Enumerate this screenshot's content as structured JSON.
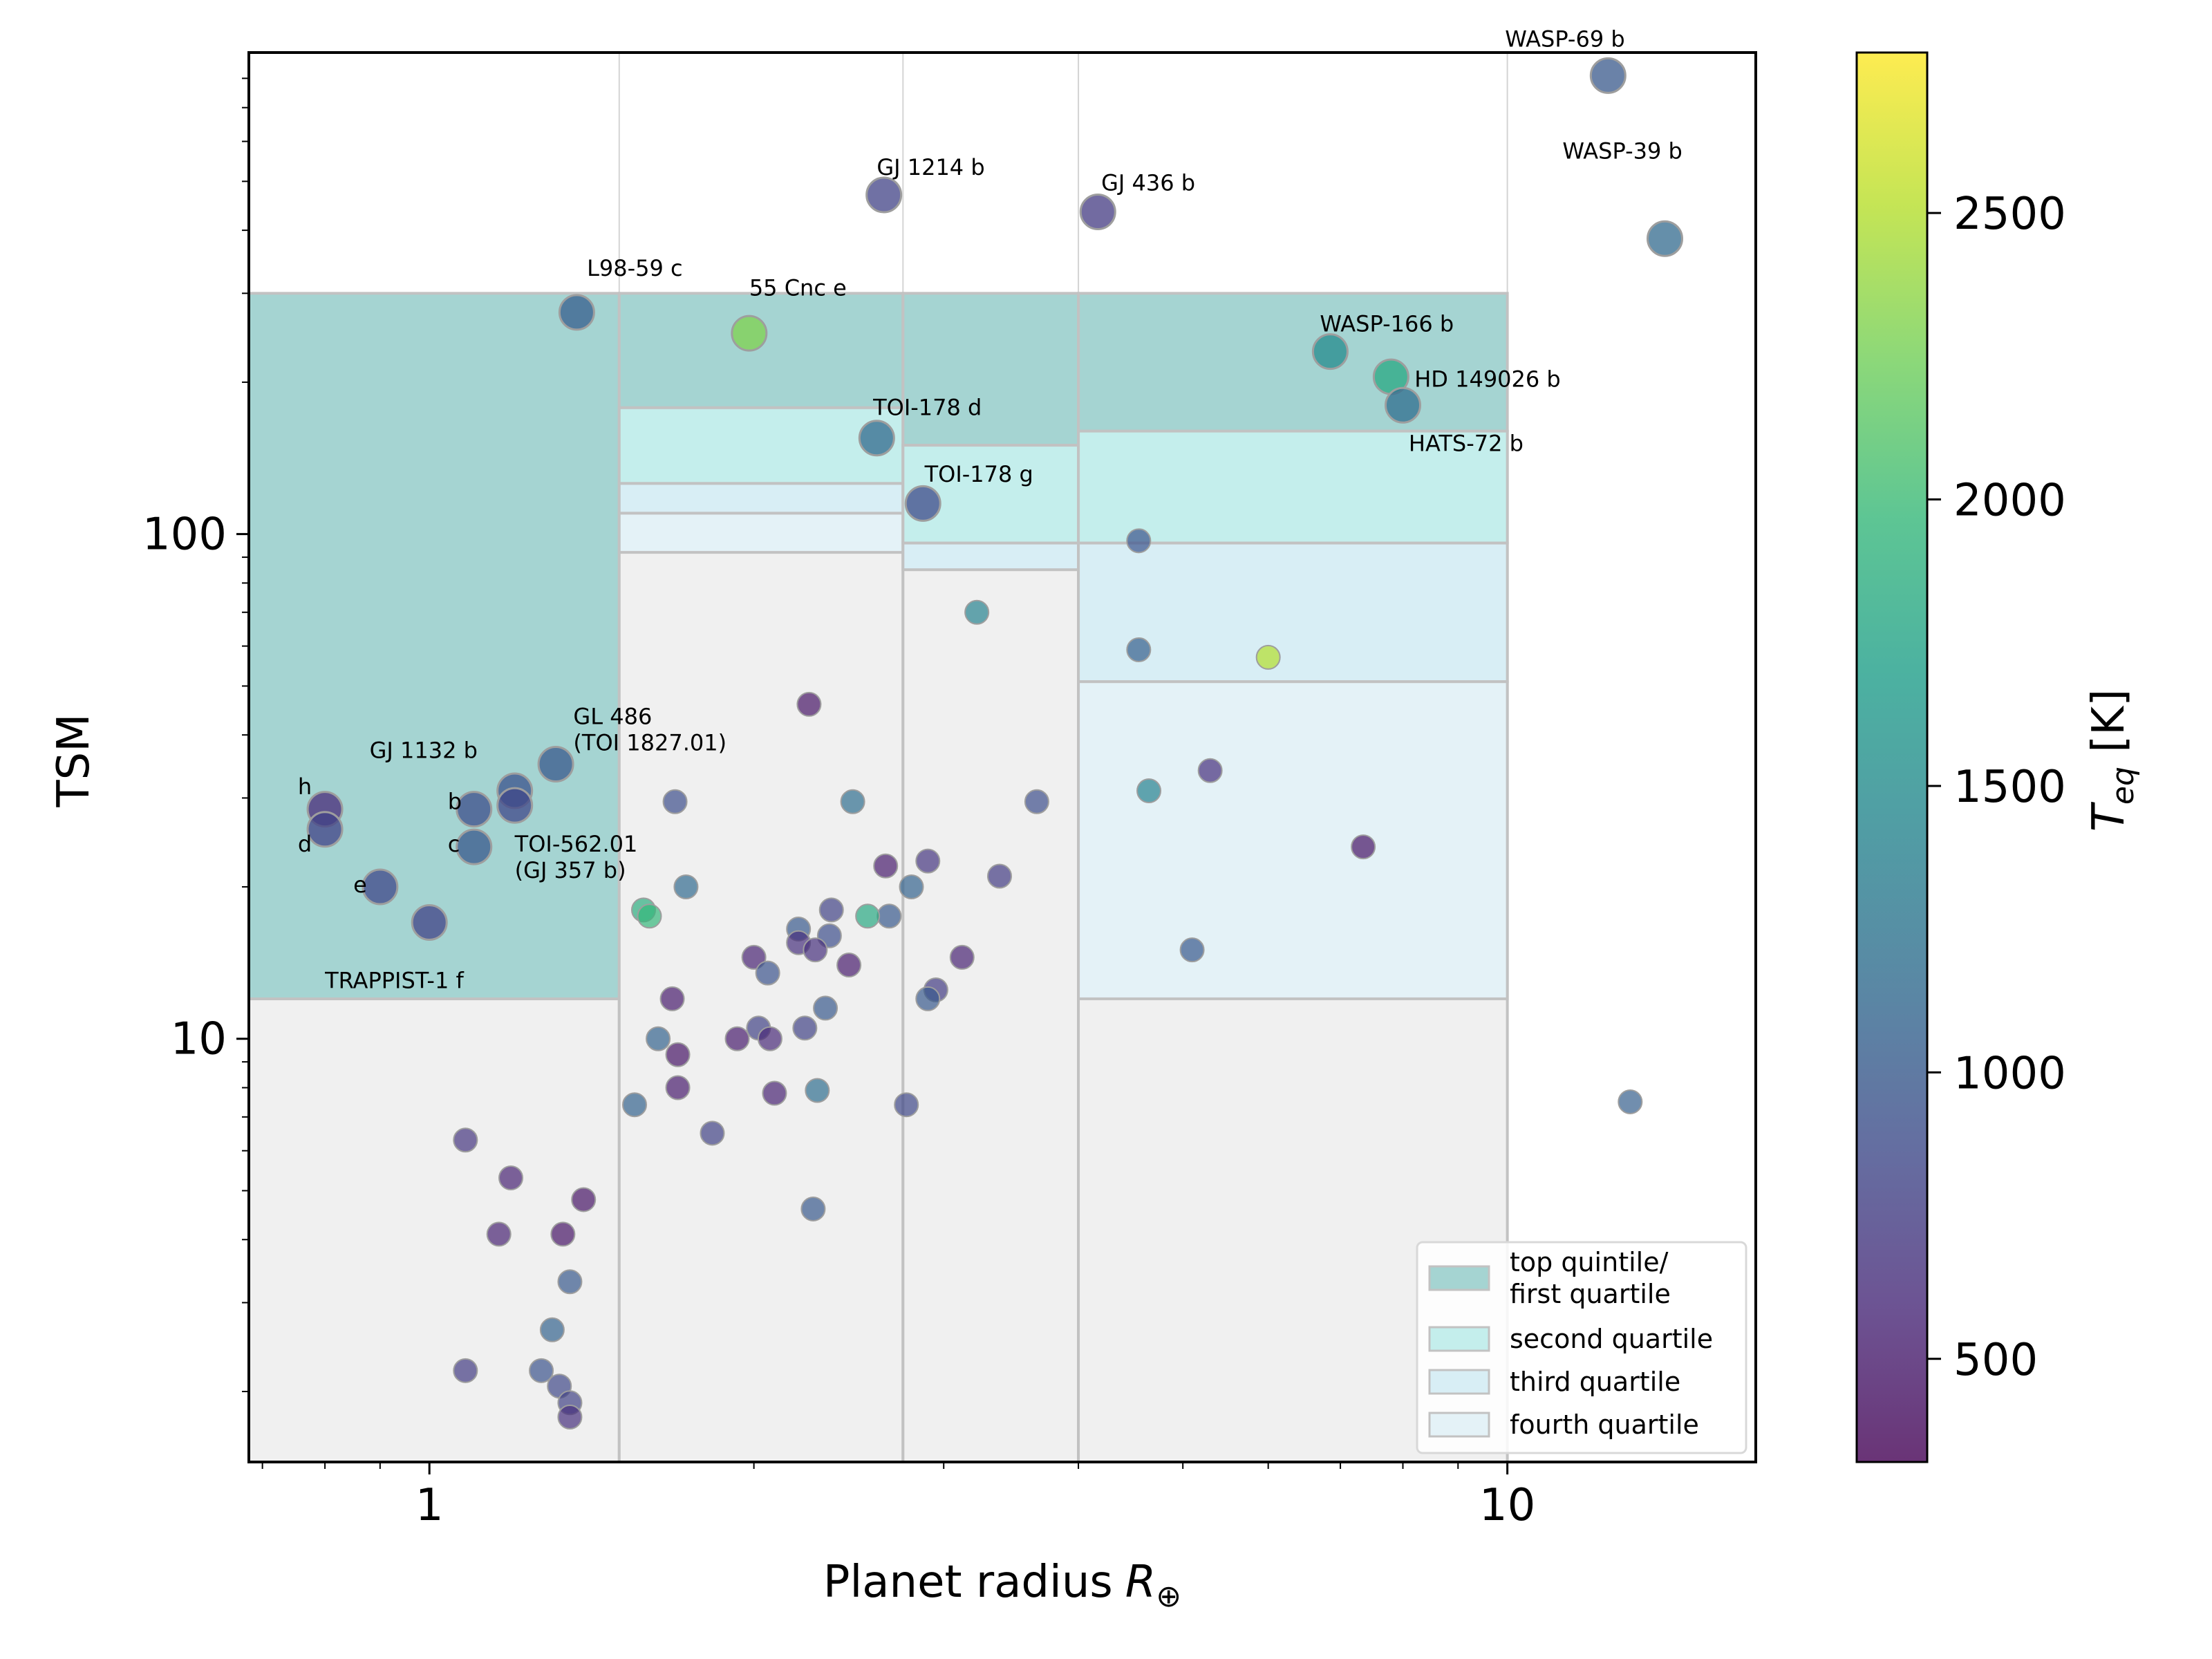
{
  "chart_data": {
    "type": "scatter",
    "title": "",
    "xlabel": "Planet radius",
    "xlabel_sub": "⊕",
    "ylabel": "TSM",
    "xscale": "log",
    "yscale": "log",
    "xlim": [
      0.68,
      17.0
    ],
    "ylim": [
      1.45,
      900
    ],
    "x_ticks": [
      {
        "v": 1,
        "label": "1"
      },
      {
        "v": 10,
        "label": "10"
      }
    ],
    "y_ticks": [
      {
        "v": 10,
        "label": "10"
      },
      {
        "v": 100,
        "label": "100"
      }
    ],
    "colorbar": {
      "label": "T",
      "label_sub": "eq",
      "label_unit": " [K]",
      "min": 320,
      "max": 2780,
      "ticks": [
        {
          "v": 500,
          "label": "500"
        },
        {
          "v": 1000,
          "label": "1000"
        },
        {
          "v": 1500,
          "label": "1500"
        },
        {
          "v": 2000,
          "label": "2000"
        },
        {
          "v": 2500,
          "label": "2500"
        }
      ]
    },
    "colors": {
      "top": "#a5d4d2",
      "second": "#c4eeec",
      "third": "#d8eef5",
      "fourth": "#e4f2f7",
      "below": "#f0f0f0",
      "box_edge": "#c2c2c2",
      "grid": "#d4d4d4",
      "marker_edge": "#9e9e9e"
    },
    "radius_bins": [
      {
        "x0": 0.68,
        "x1": 1.5,
        "top_quintile": [
          12,
          300
        ],
        "quartiles": []
      },
      {
        "x0": 1.5,
        "x1": 2.75,
        "top_quintile": [
          178,
          300
        ],
        "quartiles": [
          [
            126,
            178
          ],
          [
            110,
            126
          ],
          [
            92,
            110
          ]
        ]
      },
      {
        "x0": 2.75,
        "x1": 4.0,
        "top_quintile": [
          150,
          300
        ],
        "quartiles": [
          [
            96,
            150
          ],
          [
            85,
            96
          ],
          [
            85,
            85
          ]
        ]
      },
      {
        "x0": 4.0,
        "x1": 10.0,
        "top_quintile": [
          160,
          300
        ],
        "quartiles": [
          [
            96,
            160
          ],
          [
            51,
            96
          ],
          [
            12,
            51
          ]
        ]
      }
    ],
    "legend": {
      "position": "lower-right",
      "entries": [
        {
          "key": "top",
          "label": [
            "top quintile/",
            "first quartile"
          ]
        },
        {
          "key": "second",
          "label": [
            "second quartile"
          ]
        },
        {
          "key": "third",
          "label": [
            "third quartile"
          ]
        },
        {
          "key": "fourth",
          "label": [
            "fourth quartile"
          ]
        }
      ]
    },
    "highlighted": [
      {
        "x": 1.37,
        "y": 275,
        "teq": 1050
      },
      {
        "x": 2.64,
        "y": 470,
        "teq": 800
      },
      {
        "x": 4.17,
        "y": 435,
        "teq": 740
      },
      {
        "x": 1.98,
        "y": 250,
        "teq": 2300
      },
      {
        "x": 2.6,
        "y": 155,
        "teq": 1150
      },
      {
        "x": 2.87,
        "y": 115,
        "teq": 870
      },
      {
        "x": 12.4,
        "y": 810,
        "teq": 1000
      },
      {
        "x": 14.0,
        "y": 385,
        "teq": 1150
      },
      {
        "x": 6.85,
        "y": 230,
        "teq": 1500
      },
      {
        "x": 7.8,
        "y": 205,
        "teq": 1800
      },
      {
        "x": 8.0,
        "y": 180,
        "teq": 1200
      },
      {
        "x": 0.8,
        "y": 28.5,
        "teq": 600
      },
      {
        "x": 0.8,
        "y": 26,
        "teq": 800
      },
      {
        "x": 0.9,
        "y": 20,
        "teq": 850
      },
      {
        "x": 1.0,
        "y": 17,
        "teq": 800
      },
      {
        "x": 1.1,
        "y": 28.5,
        "teq": 900
      },
      {
        "x": 1.1,
        "y": 24,
        "teq": 1000
      },
      {
        "x": 1.2,
        "y": 31,
        "teq": 950
      },
      {
        "x": 1.2,
        "y": 29,
        "teq": 850
      },
      {
        "x": 1.31,
        "y": 35,
        "teq": 1000
      }
    ],
    "points": [
      {
        "x": 4.55,
        "y": 97,
        "teq": 950
      },
      {
        "x": 3.22,
        "y": 70,
        "teq": 1400
      },
      {
        "x": 4.55,
        "y": 59,
        "teq": 1050
      },
      {
        "x": 6.0,
        "y": 57,
        "teq": 2500
      },
      {
        "x": 4.65,
        "y": 31,
        "teq": 1400
      },
      {
        "x": 5.3,
        "y": 34,
        "teq": 650
      },
      {
        "x": 7.35,
        "y": 24,
        "teq": 450
      },
      {
        "x": 5.1,
        "y": 15,
        "teq": 1000
      },
      {
        "x": 13.0,
        "y": 7.5,
        "teq": 1050
      },
      {
        "x": 2.25,
        "y": 46,
        "teq": 450
      },
      {
        "x": 2.47,
        "y": 29.5,
        "teq": 1200
      },
      {
        "x": 1.69,
        "y": 29.5,
        "teq": 900
      },
      {
        "x": 3.66,
        "y": 29.5,
        "teq": 900
      },
      {
        "x": 2.9,
        "y": 22.5,
        "teq": 700
      },
      {
        "x": 2.65,
        "y": 22,
        "teq": 500
      },
      {
        "x": 3.38,
        "y": 21,
        "teq": 750
      },
      {
        "x": 1.73,
        "y": 20,
        "teq": 1150
      },
      {
        "x": 2.8,
        "y": 20,
        "teq": 1100
      },
      {
        "x": 2.36,
        "y": 18,
        "teq": 800
      },
      {
        "x": 2.67,
        "y": 17.5,
        "teq": 1000
      },
      {
        "x": 2.55,
        "y": 17.5,
        "teq": 1800
      },
      {
        "x": 1.58,
        "y": 18,
        "teq": 1850
      },
      {
        "x": 1.6,
        "y": 17.5,
        "teq": 1950
      },
      {
        "x": 2.2,
        "y": 16.5,
        "teq": 1000
      },
      {
        "x": 2.35,
        "y": 16,
        "teq": 900
      },
      {
        "x": 2.2,
        "y": 15.5,
        "teq": 650
      },
      {
        "x": 2.28,
        "y": 15,
        "teq": 650
      },
      {
        "x": 2.0,
        "y": 14.5,
        "teq": 550
      },
      {
        "x": 2.06,
        "y": 13.5,
        "teq": 950
      },
      {
        "x": 2.45,
        "y": 14,
        "teq": 500
      },
      {
        "x": 3.12,
        "y": 14.5,
        "teq": 550
      },
      {
        "x": 2.95,
        "y": 12.5,
        "teq": 750
      },
      {
        "x": 2.9,
        "y": 12,
        "teq": 1000
      },
      {
        "x": 2.33,
        "y": 11.5,
        "teq": 1000
      },
      {
        "x": 1.68,
        "y": 12,
        "teq": 500
      },
      {
        "x": 2.02,
        "y": 10.5,
        "teq": 800
      },
      {
        "x": 2.23,
        "y": 10.5,
        "teq": 800
      },
      {
        "x": 1.93,
        "y": 10,
        "teq": 500
      },
      {
        "x": 2.07,
        "y": 10,
        "teq": 600
      },
      {
        "x": 1.63,
        "y": 10,
        "teq": 1100
      },
      {
        "x": 1.7,
        "y": 9.3,
        "teq": 450
      },
      {
        "x": 1.7,
        "y": 8,
        "teq": 500
      },
      {
        "x": 2.09,
        "y": 7.8,
        "teq": 550
      },
      {
        "x": 2.29,
        "y": 7.9,
        "teq": 1200
      },
      {
        "x": 1.55,
        "y": 7.4,
        "teq": 1100
      },
      {
        "x": 2.77,
        "y": 7.4,
        "teq": 850
      },
      {
        "x": 1.83,
        "y": 6.5,
        "teq": 800
      },
      {
        "x": 2.27,
        "y": 4.6,
        "teq": 1000
      },
      {
        "x": 1.08,
        "y": 6.3,
        "teq": 700
      },
      {
        "x": 1.19,
        "y": 5.3,
        "teq": 550
      },
      {
        "x": 1.39,
        "y": 4.8,
        "teq": 450
      },
      {
        "x": 1.16,
        "y": 4.1,
        "teq": 550
      },
      {
        "x": 1.33,
        "y": 4.1,
        "teq": 450
      },
      {
        "x": 1.35,
        "y": 3.3,
        "teq": 1000
      },
      {
        "x": 1.3,
        "y": 2.65,
        "teq": 1100
      },
      {
        "x": 1.08,
        "y": 2.2,
        "teq": 750
      },
      {
        "x": 1.27,
        "y": 2.2,
        "teq": 950
      },
      {
        "x": 1.32,
        "y": 2.05,
        "teq": 850
      },
      {
        "x": 1.35,
        "y": 1.9,
        "teq": 800
      },
      {
        "x": 1.35,
        "y": 1.78,
        "teq": 650
      }
    ],
    "annotations": [
      {
        "lines": [
          "WASP-69 b"
        ],
        "x": 9.95,
        "y": 925
      },
      {
        "lines": [
          "WASP-39 b"
        ],
        "x": 11.25,
        "y": 555
      },
      {
        "lines": [
          "GJ 1214 b"
        ],
        "x": 2.6,
        "y": 515
      },
      {
        "lines": [
          "GJ 436 b"
        ],
        "x": 4.2,
        "y": 480
      },
      {
        "lines": [
          "L98-59 c"
        ],
        "x": 1.4,
        "y": 325
      },
      {
        "lines": [
          "55 Cnc e"
        ],
        "x": 1.98,
        "y": 297
      },
      {
        "lines": [
          "WASP-166 b"
        ],
        "x": 6.7,
        "y": 252
      },
      {
        "lines": [
          "HD 149026 b"
        ],
        "x": 8.2,
        "y": 196
      },
      {
        "lines": [
          "HATS-72 b"
        ],
        "x": 8.1,
        "y": 146
      },
      {
        "lines": [
          "TOI-178 d"
        ],
        "x": 2.58,
        "y": 172
      },
      {
        "lines": [
          "TOI-178 g"
        ],
        "x": 2.88,
        "y": 127
      },
      {
        "lines": [
          "GL 486",
          "(TOI 1827.01)"
        ],
        "x": 1.36,
        "y": 42
      },
      {
        "lines": [
          "GJ 1132 b"
        ],
        "x": 0.88,
        "y": 36
      },
      {
        "lines": [
          "TOI-562.01",
          "(GJ 357 b)"
        ],
        "x": 1.2,
        "y": 23.5
      },
      {
        "lines": [
          "h"
        ],
        "x": 0.755,
        "y": 30.5
      },
      {
        "lines": [
          "d"
        ],
        "x": 0.755,
        "y": 23.5
      },
      {
        "lines": [
          "b"
        ],
        "x": 1.04,
        "y": 28.5
      },
      {
        "lines": [
          "c"
        ],
        "x": 1.04,
        "y": 23.5
      },
      {
        "lines": [
          "e"
        ],
        "x": 0.85,
        "y": 19.5
      },
      {
        "lines": [
          "TRAPPIST-1 f"
        ],
        "x": 0.8,
        "y": 12.6
      }
    ]
  }
}
